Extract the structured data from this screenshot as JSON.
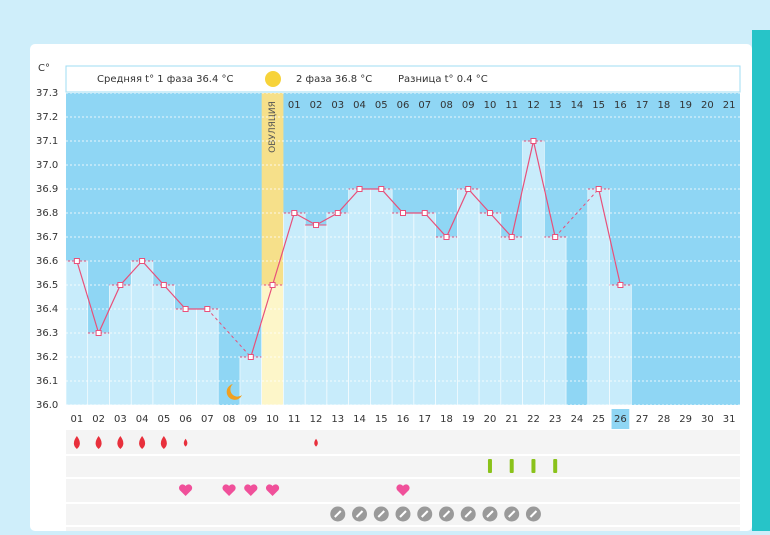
{
  "chart_data": {
    "type": "line",
    "y_unit": "C°",
    "phase1_label": "Средняя t° 1 фаза 36.4 °C",
    "phase2_label": "2 фаза 36.8 °C",
    "diff_label": "Разница t° 0.4 °C",
    "ovulation_label": "ОВУЛЯЦИЯ",
    "ovulation_day": 10,
    "current_day": 26,
    "categories": [
      "01",
      "02",
      "03",
      "04",
      "05",
      "06",
      "07",
      "08",
      "09",
      "10",
      "11",
      "12",
      "13",
      "14",
      "15",
      "16",
      "17",
      "18",
      "19",
      "20",
      "21",
      "22",
      "23",
      "24",
      "25",
      "26",
      "27",
      "28",
      "29",
      "30",
      "31"
    ],
    "phase2_days": [
      "01",
      "02",
      "03",
      "04",
      "05",
      "06",
      "07",
      "08",
      "09",
      "10",
      "11",
      "12",
      "13",
      "14",
      "15",
      "16",
      "17",
      "18",
      "19",
      "20",
      "21"
    ],
    "series": [
      {
        "color": "#e8507a",
        "values": [
          36.6,
          36.3,
          36.5,
          36.6,
          36.5,
          36.4,
          36.4,
          null,
          36.2,
          36.5,
          36.8,
          36.75,
          36.8,
          36.9,
          36.9,
          36.8,
          36.8,
          36.7,
          36.9,
          36.8,
          36.7,
          37.1,
          36.7,
          null,
          36.9,
          36.5,
          null,
          null,
          null,
          null,
          null
        ]
      }
    ],
    "ylim": [
      36.0,
      37.3
    ],
    "yticks": [
      {
        "value": 36.0,
        "label": "36.0"
      },
      36.1,
      36.2,
      36.3,
      36.4,
      36.5,
      36.6,
      36.7,
      36.8,
      36.9,
      {
        "value": 37.0,
        "label": "37.0"
      },
      37.1,
      37.2,
      37.3
    ],
    "grid": true,
    "bleeding_days": [
      1,
      2,
      3,
      4,
      5,
      6,
      12
    ],
    "sign_days": [
      20,
      21,
      22,
      23
    ],
    "heart_days": [
      6,
      8,
      9,
      10,
      16
    ],
    "pill_days": [
      13,
      14,
      15,
      16,
      17,
      18,
      19,
      20,
      21,
      22
    ]
  }
}
